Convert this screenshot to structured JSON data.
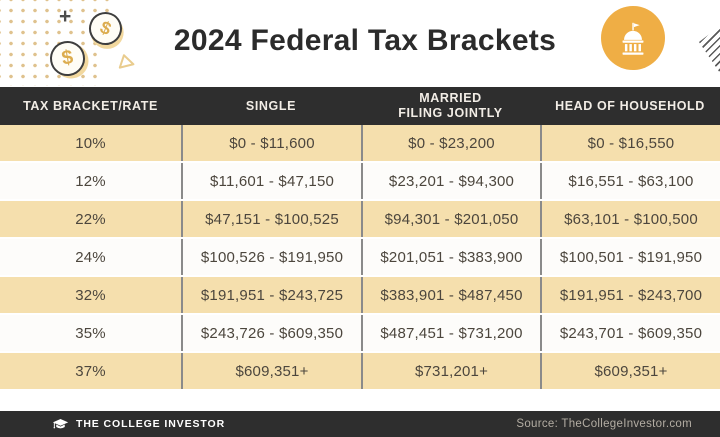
{
  "header": {
    "title": "2024 Federal Tax Brackets",
    "decor": {
      "plus_glyph": "+",
      "coin_glyph": "$"
    }
  },
  "table": {
    "columns": [
      "TAX BRACKET/RATE",
      "SINGLE",
      "MARRIED\nFILING JOINTLY",
      "HEAD OF HOUSEHOLD"
    ],
    "rows": [
      {
        "rate": "10%",
        "single": "$0 - $11,600",
        "married_filing_jointly": "$0 - $23,200",
        "head_of_household": "$0 - $16,550"
      },
      {
        "rate": "12%",
        "single": "$11,601 - $47,150",
        "married_filing_jointly": "$23,201 - $94,300",
        "head_of_household": "$16,551 - $63,100"
      },
      {
        "rate": "22%",
        "single": "$47,151 - $100,525",
        "married_filing_jointly": "$94,301 - $201,050",
        "head_of_household": "$63,101 - $100,500"
      },
      {
        "rate": "24%",
        "single": "$100,526 - $191,950",
        "married_filing_jointly": "$201,051 - $383,900",
        "head_of_household": "$100,501 - $191,950"
      },
      {
        "rate": "32%",
        "single": "$191,951 - $243,725",
        "married_filing_jointly": "$383,901 - $487,450",
        "head_of_household": "$191,951 - $243,700"
      },
      {
        "rate": "35%",
        "single": "$243,726 - $609,350",
        "married_filing_jointly": "$487,451 - $731,200",
        "head_of_household": "$243,701 - $609,350"
      },
      {
        "rate": "37%",
        "single": "$609,351+",
        "married_filing_jointly": "$731,201+",
        "head_of_household": "$609,351+"
      }
    ]
  },
  "footer": {
    "brand": "THE COLLEGE INVESTOR",
    "source": "Source: TheCollegeInvestor.com"
  },
  "colors": {
    "accent_gold": "#EFAE45",
    "row_cream": "#F5DFAD",
    "dark_bar": "#2E2E2E",
    "coin_gold": "#DCAC4E",
    "divider_gray": "#8A8A8A"
  },
  "chart_data": {
    "type": "table",
    "title": "2024 Federal Tax Brackets",
    "columns": [
      "TAX BRACKET/RATE",
      "SINGLE",
      "MARRIED FILING JOINTLY",
      "HEAD OF HOUSEHOLD"
    ],
    "rows": [
      [
        "10%",
        "$0 - $11,600",
        "$0 - $23,200",
        "$0 - $16,550"
      ],
      [
        "12%",
        "$11,601 - $47,150",
        "$23,201 - $94,300",
        "$16,551 - $63,100"
      ],
      [
        "22%",
        "$47,151 - $100,525",
        "$94,301 - $201,050",
        "$63,101 - $100,500"
      ],
      [
        "24%",
        "$100,526 - $191,950",
        "$201,051 - $383,900",
        "$100,501 - $191,950"
      ],
      [
        "32%",
        "$191,951 - $243,725",
        "$383,901 - $487,450",
        "$191,951 - $243,700"
      ],
      [
        "35%",
        "$243,726 - $609,350",
        "$487,451 - $731,200",
        "$243,701 - $609,350"
      ],
      [
        "37%",
        "$609,351+",
        "$731,201+",
        "$609,351+"
      ]
    ]
  }
}
